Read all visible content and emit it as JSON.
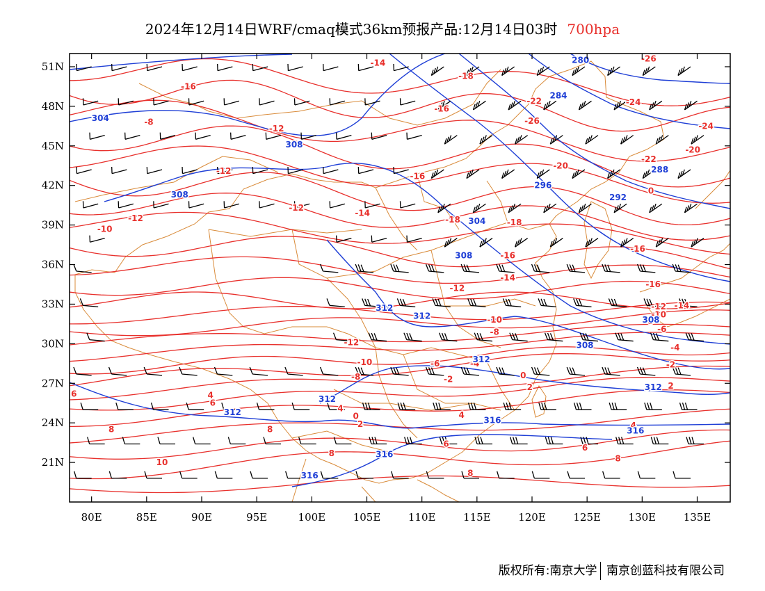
{
  "title": {
    "main": "2024年12月14日WRF/cmaq模式36km预报产品:12月14日03时",
    "level": "700hpa"
  },
  "footer": {
    "left": "版权所有:南京大学",
    "right": "南京创蓝科技有限公司"
  },
  "colors": {
    "temperature_contour": "#e8302c",
    "height_contour": "#1f3fd6",
    "boundary": "#d98b3a",
    "wind_barb": "#000000",
    "level_text": "#e8302c"
  },
  "axes": {
    "lon_range": [
      78,
      138
    ],
    "lat_range": [
      18,
      52
    ],
    "lon_ticks": [
      "80E",
      "85E",
      "90E",
      "95E",
      "100E",
      "105E",
      "110E",
      "115E",
      "120E",
      "125E",
      "130E",
      "135E"
    ],
    "lat_ticks": [
      "51N",
      "48N",
      "45N",
      "42N",
      "39N",
      "36N",
      "33N",
      "30N",
      "27N",
      "24N",
      "21N"
    ]
  },
  "temperature_labels": [
    {
      "lon": 106.0,
      "lat": 51.3,
      "text": "-14"
    },
    {
      "lon": 114.0,
      "lat": 50.3,
      "text": "-18"
    },
    {
      "lon": 88.8,
      "lat": 49.5,
      "text": "-16"
    },
    {
      "lon": 111.8,
      "lat": 47.8,
      "text": "-16"
    },
    {
      "lon": 120.2,
      "lat": 48.4,
      "text": "-22"
    },
    {
      "lon": 120.0,
      "lat": 46.9,
      "text": "-26"
    },
    {
      "lon": 129.2,
      "lat": 48.3,
      "text": "-24"
    },
    {
      "lon": 135.8,
      "lat": 46.5,
      "text": "-24"
    },
    {
      "lon": 85.2,
      "lat": 46.8,
      "text": "-8"
    },
    {
      "lon": 96.8,
      "lat": 46.3,
      "text": "-12"
    },
    {
      "lon": 92.0,
      "lat": 43.1,
      "text": "-12"
    },
    {
      "lon": 109.6,
      "lat": 42.7,
      "text": "-16"
    },
    {
      "lon": 122.6,
      "lat": 43.5,
      "text": "-20"
    },
    {
      "lon": 130.6,
      "lat": 44.0,
      "text": "-22"
    },
    {
      "lon": 134.6,
      "lat": 44.7,
      "text": "-20"
    },
    {
      "lon": 98.6,
      "lat": 40.3,
      "text": "-12"
    },
    {
      "lon": 84.0,
      "lat": 39.5,
      "text": "-12"
    },
    {
      "lon": 81.2,
      "lat": 38.7,
      "text": "-10"
    },
    {
      "lon": 104.6,
      "lat": 39.9,
      "text": "-14"
    },
    {
      "lon": 112.8,
      "lat": 39.4,
      "text": "-18"
    },
    {
      "lon": 118.4,
      "lat": 39.2,
      "text": "-18"
    },
    {
      "lon": 129.6,
      "lat": 37.2,
      "text": "-16"
    },
    {
      "lon": 117.8,
      "lat": 36.7,
      "text": "-16"
    },
    {
      "lon": 117.8,
      "lat": 35.0,
      "text": "-14"
    },
    {
      "lon": 131.0,
      "lat": 34.5,
      "text": "-16"
    },
    {
      "lon": 113.2,
      "lat": 34.2,
      "text": "-12"
    },
    {
      "lon": 131.5,
      "lat": 32.8,
      "text": "-12"
    },
    {
      "lon": 133.6,
      "lat": 32.9,
      "text": "-14"
    },
    {
      "lon": 131.5,
      "lat": 32.2,
      "text": "-10"
    },
    {
      "lon": 130.6,
      "lat": 31.7,
      "text": "-8"
    },
    {
      "lon": 116.6,
      "lat": 31.8,
      "text": "-10"
    },
    {
      "lon": 116.6,
      "lat": 30.9,
      "text": "-8"
    },
    {
      "lon": 131.8,
      "lat": 31.1,
      "text": "-6"
    },
    {
      "lon": 133.0,
      "lat": 29.7,
      "text": "-4"
    },
    {
      "lon": 103.6,
      "lat": 30.1,
      "text": "-12"
    },
    {
      "lon": 104.8,
      "lat": 28.6,
      "text": "-10"
    },
    {
      "lon": 111.2,
      "lat": 28.5,
      "text": "-6"
    },
    {
      "lon": 114.8,
      "lat": 28.5,
      "text": "-4"
    },
    {
      "lon": 132.6,
      "lat": 28.4,
      "text": "-2"
    },
    {
      "lon": 119.2,
      "lat": 27.6,
      "text": "0"
    },
    {
      "lon": 112.4,
      "lat": 27.3,
      "text": "-2"
    },
    {
      "lon": 119.8,
      "lat": 26.7,
      "text": "2"
    },
    {
      "lon": 132.6,
      "lat": 26.8,
      "text": "2"
    },
    {
      "lon": 104.0,
      "lat": 27.5,
      "text": "-8"
    },
    {
      "lon": 78.4,
      "lat": 26.2,
      "text": "6"
    },
    {
      "lon": 90.8,
      "lat": 26.1,
      "text": "4"
    },
    {
      "lon": 91.0,
      "lat": 25.5,
      "text": "6"
    },
    {
      "lon": 102.6,
      "lat": 25.1,
      "text": "4"
    },
    {
      "lon": 104.0,
      "lat": 24.5,
      "text": "0"
    },
    {
      "lon": 104.4,
      "lat": 23.9,
      "text": "2"
    },
    {
      "lon": 113.6,
      "lat": 24.6,
      "text": "4"
    },
    {
      "lon": 96.2,
      "lat": 23.5,
      "text": "8"
    },
    {
      "lon": 81.8,
      "lat": 23.5,
      "text": "8"
    },
    {
      "lon": 129.2,
      "lat": 23.8,
      "text": "4"
    },
    {
      "lon": 112.2,
      "lat": 22.4,
      "text": "6"
    },
    {
      "lon": 124.8,
      "lat": 22.1,
      "text": "6"
    },
    {
      "lon": 101.8,
      "lat": 21.7,
      "text": "8"
    },
    {
      "lon": 86.4,
      "lat": 21.0,
      "text": "10"
    },
    {
      "lon": 127.8,
      "lat": 21.3,
      "text": "8"
    },
    {
      "lon": 114.4,
      "lat": 20.2,
      "text": "8"
    },
    {
      "lon": 130.6,
      "lat": 51.6,
      "text": "-26"
    },
    {
      "lon": 130.8,
      "lat": 41.6,
      "text": "0"
    }
  ],
  "height_labels": [
    {
      "lon": 80.8,
      "lat": 47.1,
      "text": "304"
    },
    {
      "lon": 98.4,
      "lat": 45.1,
      "text": "308"
    },
    {
      "lon": 88.0,
      "lat": 41.3,
      "text": "308"
    },
    {
      "lon": 124.4,
      "lat": 51.5,
      "text": "280"
    },
    {
      "lon": 122.4,
      "lat": 48.8,
      "text": "284"
    },
    {
      "lon": 131.6,
      "lat": 43.2,
      "text": "288"
    },
    {
      "lon": 121.0,
      "lat": 42.0,
      "text": "296"
    },
    {
      "lon": 127.8,
      "lat": 41.1,
      "text": "292"
    },
    {
      "lon": 115.0,
      "lat": 39.3,
      "text": "304"
    },
    {
      "lon": 113.8,
      "lat": 36.7,
      "text": "308"
    },
    {
      "lon": 106.6,
      "lat": 32.7,
      "text": "312"
    },
    {
      "lon": 110.0,
      "lat": 32.1,
      "text": "312"
    },
    {
      "lon": 124.8,
      "lat": 29.9,
      "text": "308"
    },
    {
      "lon": 130.8,
      "lat": 31.8,
      "text": "308"
    },
    {
      "lon": 115.4,
      "lat": 28.8,
      "text": "312"
    },
    {
      "lon": 131.0,
      "lat": 26.7,
      "text": "312"
    },
    {
      "lon": 92.8,
      "lat": 24.8,
      "text": "312"
    },
    {
      "lon": 101.4,
      "lat": 25.8,
      "text": "312"
    },
    {
      "lon": 116.4,
      "lat": 24.2,
      "text": "316"
    },
    {
      "lon": 129.4,
      "lat": 23.4,
      "text": "316"
    },
    {
      "lon": 106.6,
      "lat": 21.6,
      "text": "316"
    },
    {
      "lon": 99.8,
      "lat": 20.0,
      "text": "316"
    }
  ]
}
